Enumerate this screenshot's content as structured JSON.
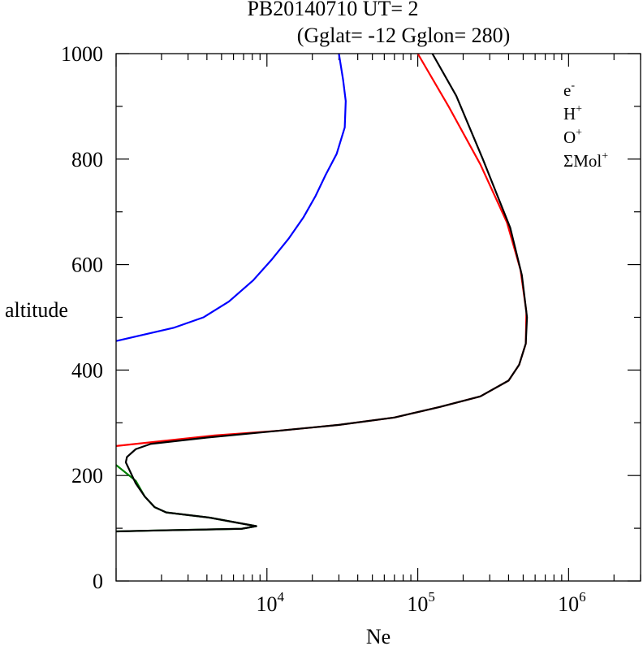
{
  "chart_data": {
    "type": "line",
    "title": "PB20140710   UT=  2",
    "subtitle": "(Gglat= -12   Gglon=  280)",
    "xlabel": "Ne",
    "ylabel": "altitude",
    "x_scale": "log",
    "xlim": [
      1000,
      3000000
    ],
    "ylim": [
      0,
      1000
    ],
    "y_ticks": [
      "0",
      "200",
      "400",
      "600",
      "800",
      "1000"
    ],
    "x_ticks": [
      {
        "value": 10000,
        "base": "10",
        "exp": "4"
      },
      {
        "value": 100000,
        "base": "10",
        "exp": "5"
      },
      {
        "value": 1000000,
        "base": "10",
        "exp": "6"
      }
    ],
    "legend_position": "top-right",
    "series": [
      {
        "name": "e-",
        "label_base": "e",
        "label_sup": "-",
        "color": "#000000",
        "points": [
          [
            125000,
            1000
          ],
          [
            180000,
            920
          ],
          [
            270000,
            800
          ],
          [
            410000,
            670
          ],
          [
            490000,
            580
          ],
          [
            530000,
            500
          ],
          [
            520000,
            450
          ],
          [
            470000,
            410
          ],
          [
            400000,
            380
          ],
          [
            260000,
            350
          ],
          [
            140000,
            330
          ],
          [
            70000,
            310
          ],
          [
            30000,
            296
          ],
          [
            12000,
            285
          ],
          [
            4000,
            272
          ],
          [
            1700,
            260
          ],
          [
            1350,
            250
          ],
          [
            1180,
            235
          ],
          [
            1160,
            225
          ],
          [
            1350,
            185
          ],
          [
            1550,
            160
          ],
          [
            1800,
            140
          ],
          [
            2150,
            130
          ],
          [
            4200,
            120
          ],
          [
            6500,
            110
          ],
          [
            8500,
            104
          ],
          [
            6800,
            99
          ],
          [
            2000,
            96
          ],
          [
            1000,
            94
          ]
        ]
      },
      {
        "name": "H+",
        "label_base": "H",
        "label_sup": "+",
        "color": "#0000ff",
        "points": [
          [
            30000,
            1000
          ],
          [
            32000,
            950
          ],
          [
            33300,
            910
          ],
          [
            32800,
            860
          ],
          [
            29000,
            810
          ],
          [
            24500,
            770
          ],
          [
            21000,
            730
          ],
          [
            17500,
            690
          ],
          [
            14000,
            650
          ],
          [
            10800,
            610
          ],
          [
            8100,
            570
          ],
          [
            5600,
            530
          ],
          [
            3800,
            500
          ],
          [
            2400,
            480
          ],
          [
            1000,
            455
          ]
        ]
      },
      {
        "name": "O+",
        "label_base": "O",
        "label_sup": "+",
        "color": "#ff0000",
        "points": [
          [
            100000,
            1000
          ],
          [
            160000,
            900
          ],
          [
            260000,
            790
          ],
          [
            390000,
            680
          ],
          [
            480000,
            590
          ],
          [
            525000,
            510
          ],
          [
            520000,
            450
          ],
          [
            470000,
            410
          ],
          [
            400000,
            380
          ],
          [
            260000,
            350
          ],
          [
            140000,
            330
          ],
          [
            70000,
            310
          ],
          [
            30000,
            296
          ],
          [
            12000,
            285
          ],
          [
            4500,
            276
          ],
          [
            1000,
            256
          ]
        ]
      },
      {
        "name": "ΣMol+",
        "label_base": "ΣMol",
        "label_sup": "+",
        "color": "#008000",
        "points": [
          [
            1000,
            220
          ],
          [
            1350,
            190
          ],
          [
            1550,
            160
          ],
          [
            1800,
            140
          ],
          [
            2150,
            130
          ],
          [
            4200,
            120
          ],
          [
            6500,
            110
          ],
          [
            8500,
            104
          ],
          [
            6800,
            99
          ],
          [
            2000,
            96
          ],
          [
            1000,
            94
          ]
        ]
      }
    ]
  }
}
